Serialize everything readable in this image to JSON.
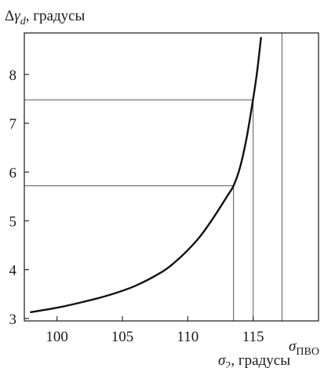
{
  "chart_data": {
    "type": "line",
    "title": "",
    "ylabel": {
      "prefix": "Δ",
      "symbol": "γ",
      "subscript": "d",
      "suffix": ", градусы"
    },
    "xlabel": {
      "symbol": "σ",
      "subscript": "2",
      "suffix": ", градусы"
    },
    "xlim": [
      97.5,
      120
    ],
    "ylim": [
      2.95,
      8.85
    ],
    "x_ticks": [
      {
        "value": 100,
        "label": "100"
      },
      {
        "value": 105,
        "label": "105"
      },
      {
        "value": 110,
        "label": "110"
      },
      {
        "value": 115,
        "label": "115"
      }
    ],
    "y_ticks": [
      {
        "value": 3,
        "label": "3"
      },
      {
        "value": 4,
        "label": "4"
      },
      {
        "value": 5,
        "label": "5"
      },
      {
        "value": 6,
        "label": "6"
      },
      {
        "value": 7,
        "label": "7"
      },
      {
        "value": 8,
        "label": "8"
      }
    ],
    "grid": false,
    "series": [
      {
        "x": [
          98.0,
          100.0,
          102.0,
          104.0,
          106.0,
          108.0,
          109.0,
          110.0,
          111.0,
          112.0,
          113.0,
          113.5,
          114.0,
          114.5,
          115.0,
          115.3,
          115.6
        ],
        "y": [
          3.13,
          3.22,
          3.34,
          3.48,
          3.67,
          3.95,
          4.15,
          4.4,
          4.7,
          5.08,
          5.5,
          5.72,
          6.1,
          6.7,
          7.5,
          8.05,
          8.75
        ]
      }
    ],
    "reference_lines": [
      {
        "type": "horizontal",
        "y": 5.72,
        "x_from": 97.5,
        "x_to": 113.5
      },
      {
        "type": "vertical",
        "x": 113.5,
        "y_from": 2.95,
        "y_to": 5.72
      },
      {
        "type": "horizontal",
        "y": 7.48,
        "x_from": 97.5,
        "x_to": 115.0
      },
      {
        "type": "vertical",
        "x": 115.0,
        "y_from": 2.95,
        "y_to": 7.48
      },
      {
        "type": "vertical",
        "x": 117.2,
        "y_from": 2.95,
        "y_to": 8.85
      }
    ],
    "annotations": [
      {
        "symbol": "σ",
        "subscript": "ПВО",
        "x": 117.2
      }
    ]
  }
}
